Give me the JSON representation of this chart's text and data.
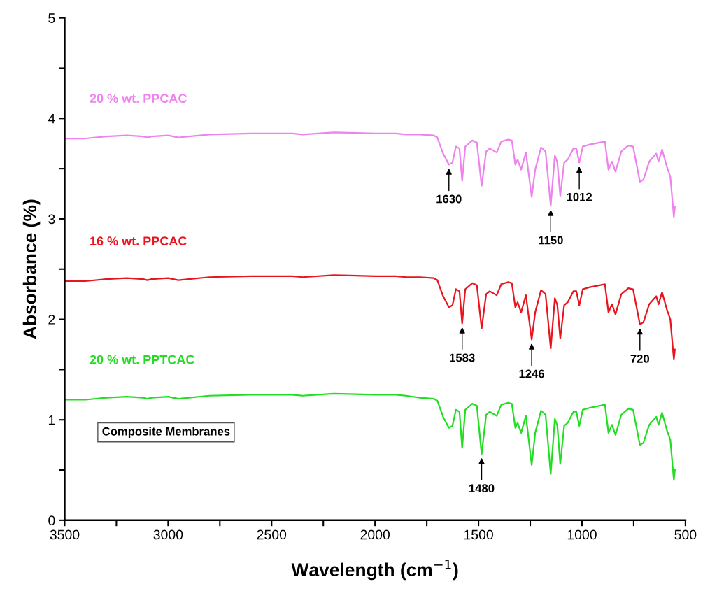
{
  "chart_data": {
    "type": "line",
    "xlabel": "Wavelength (cm$^{−1}$)",
    "ylabel": "Absorbance (%)",
    "xlim": [
      3500,
      500
    ],
    "ylim": [
      0,
      5
    ],
    "xticks": [
      3500,
      {
        "value": 3250,
        "label": null
      },
      3000,
      {
        "value": 2750,
        "label": null
      },
      2500,
      {
        "value": 2250,
        "label": null
      },
      2000,
      {
        "value": 1750,
        "label": null
      },
      1500,
      {
        "value": 1250,
        "label": null
      },
      1000,
      {
        "value": 750,
        "label": null
      },
      500
    ],
    "yticks": [
      0,
      {
        "value": 0.5,
        "label": null
      },
      1,
      {
        "value": 1.5,
        "label": null
      },
      2,
      {
        "value": 2.5,
        "label": null
      },
      3,
      {
        "value": 3.5,
        "label": null
      },
      4,
      {
        "value": 4.5,
        "label": null
      },
      5
    ],
    "grid": false,
    "legend": false,
    "marker": "none",
    "line_style": "solid",
    "x": [
      3500,
      3400,
      3300,
      3200,
      3120,
      3100,
      3080,
      3000,
      2950,
      2900,
      2800,
      2600,
      2400,
      2350,
      2200,
      2000,
      1900,
      1850,
      1784,
      1716,
      1699,
      1671,
      1643,
      1626,
      1609,
      1592,
      1579,
      1564,
      1530,
      1508,
      1485,
      1463,
      1446,
      1412,
      1390,
      1356,
      1339,
      1322,
      1311,
      1294,
      1271,
      1243,
      1226,
      1198,
      1176,
      1151,
      1131,
      1119,
      1105,
      1086,
      1069,
      1041,
      1027,
      1013,
      996,
      962,
      889,
      872,
      855,
      838,
      810,
      776,
      753,
      720,
      703,
      675,
      641,
      630,
      613,
      590,
      573,
      556,
      551
    ],
    "series": [
      {
        "name": "20 % wt. PPCAC",
        "color": "#ee82ee",
        "values": [
          3.8,
          3.8,
          3.82,
          3.83,
          3.82,
          3.81,
          3.82,
          3.83,
          3.81,
          3.82,
          3.84,
          3.85,
          3.85,
          3.84,
          3.86,
          3.85,
          3.85,
          3.84,
          3.84,
          3.83,
          3.81,
          3.65,
          3.54,
          3.56,
          3.72,
          3.7,
          3.38,
          3.72,
          3.78,
          3.76,
          3.33,
          3.67,
          3.7,
          3.66,
          3.77,
          3.79,
          3.78,
          3.54,
          3.59,
          3.49,
          3.66,
          3.22,
          3.49,
          3.71,
          3.67,
          3.13,
          3.63,
          3.56,
          3.23,
          3.56,
          3.59,
          3.7,
          3.7,
          3.56,
          3.72,
          3.74,
          3.77,
          3.49,
          3.57,
          3.47,
          3.67,
          3.73,
          3.72,
          3.37,
          3.39,
          3.57,
          3.65,
          3.57,
          3.69,
          3.52,
          3.42,
          3.02,
          3.12
        ]
      },
      {
        "name": "16 % wt. PPCAC",
        "color": "#e8141e",
        "values": [
          2.38,
          2.38,
          2.4,
          2.41,
          2.4,
          2.39,
          2.4,
          2.41,
          2.39,
          2.4,
          2.42,
          2.43,
          2.43,
          2.42,
          2.44,
          2.43,
          2.43,
          2.42,
          2.42,
          2.41,
          2.39,
          2.23,
          2.12,
          2.14,
          2.3,
          2.28,
          1.96,
          2.3,
          2.36,
          2.34,
          1.91,
          2.25,
          2.28,
          2.24,
          2.35,
          2.37,
          2.36,
          2.12,
          2.17,
          2.07,
          2.24,
          1.8,
          2.07,
          2.29,
          2.25,
          1.71,
          2.21,
          2.14,
          1.81,
          2.14,
          2.17,
          2.28,
          2.28,
          2.14,
          2.3,
          2.32,
          2.35,
          2.07,
          2.15,
          2.05,
          2.25,
          2.31,
          2.3,
          1.95,
          1.97,
          2.15,
          2.23,
          2.15,
          2.27,
          2.1,
          2.0,
          1.6,
          1.7
        ]
      },
      {
        "name": "20 % wt. PPTCAC",
        "color": "#22dd22",
        "values": [
          1.2,
          1.2,
          1.22,
          1.23,
          1.22,
          1.21,
          1.22,
          1.23,
          1.21,
          1.22,
          1.24,
          1.25,
          1.25,
          1.24,
          1.26,
          1.25,
          1.25,
          1.24,
          1.22,
          1.21,
          1.19,
          1.03,
          0.92,
          0.94,
          1.1,
          1.08,
          0.72,
          1.1,
          1.16,
          1.14,
          0.66,
          1.05,
          1.08,
          1.04,
          1.15,
          1.17,
          1.16,
          0.92,
          0.97,
          0.87,
          1.04,
          0.55,
          0.87,
          1.09,
          1.05,
          0.46,
          1.01,
          0.94,
          0.56,
          0.94,
          0.97,
          1.08,
          1.08,
          0.94,
          1.1,
          1.12,
          1.15,
          0.87,
          0.95,
          0.85,
          1.05,
          1.11,
          1.1,
          0.75,
          0.77,
          0.95,
          1.03,
          0.95,
          1.07,
          0.9,
          0.8,
          0.4,
          0.5
        ]
      }
    ],
    "annotations": [
      {
        "text": "1630",
        "x": 1643,
        "y": 3.54
      },
      {
        "text": "1150",
        "x": 1151,
        "y": 3.13
      },
      {
        "text": "1012",
        "x": 1013,
        "y": 3.56
      },
      {
        "text": "1583",
        "x": 1579,
        "y": 1.96
      },
      {
        "text": "1246",
        "x": 1243,
        "y": 1.8
      },
      {
        "text": "720",
        "x": 720,
        "y": 1.95
      },
      {
        "text": "1480",
        "x": 1485,
        "y": 0.66
      },
      "Composite Membranes"
    ]
  }
}
